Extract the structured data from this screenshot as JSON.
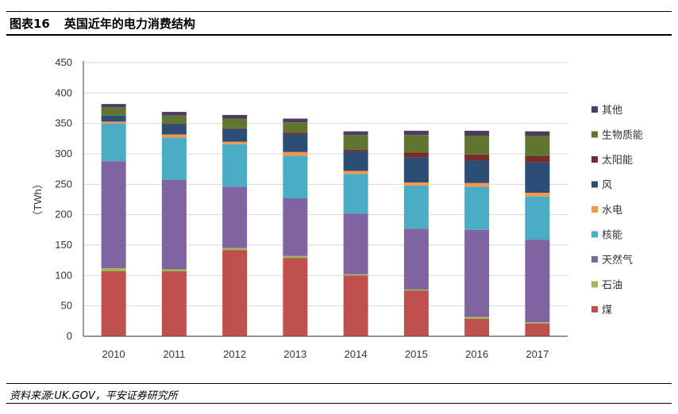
{
  "header": {
    "figure_no": "图表16",
    "title": "英国近年的电力消费结构"
  },
  "footer": {
    "source": "资料来源:UK.GOV，平安证券研究所"
  },
  "chart_data": {
    "type": "stacked-bar",
    "title": "英国近年的电力消费结构",
    "ylabel": "（TWh）",
    "xlabel": "",
    "ylim": [
      0,
      450
    ],
    "yticks": [
      0,
      50,
      100,
      150,
      200,
      250,
      300,
      350,
      400,
      450
    ],
    "grid": true,
    "legend_position": "right",
    "categories": [
      "2010",
      "2011",
      "2012",
      "2013",
      "2014",
      "2015",
      "2016",
      "2017"
    ],
    "series": [
      {
        "name": "煤",
        "color": "#C0504D",
        "values": [
          107,
          107,
          142,
          129,
          100,
          75,
          29,
          21
        ]
      },
      {
        "name": "石油",
        "color": "#9BBB59",
        "values": [
          5,
          3,
          3,
          3,
          2,
          2,
          3,
          2
        ]
      },
      {
        "name": "天然气",
        "color": "#8064A2",
        "values": [
          176,
          147,
          101,
          95,
          100,
          100,
          143,
          136
        ]
      },
      {
        "name": "核能",
        "color": "#4BACC6",
        "values": [
          62,
          70,
          70,
          70,
          65,
          71,
          71,
          71
        ]
      },
      {
        "name": "水电",
        "color": "#F79646",
        "values": [
          3,
          5,
          4,
          6,
          5,
          5,
          6,
          6
        ]
      },
      {
        "name": "风",
        "color": "#2C4D75",
        "values": [
          10,
          17,
          21,
          29,
          32,
          41,
          37,
          50
        ]
      },
      {
        "name": "太阳能",
        "color": "#772C2A",
        "values": [
          0,
          1,
          1,
          3,
          3,
          8,
          10,
          11
        ]
      },
      {
        "name": "生物质能",
        "color": "#5F7530",
        "values": [
          14,
          13,
          16,
          17,
          24,
          29,
          31,
          33
        ]
      },
      {
        "name": "其他",
        "color": "#4D3B62",
        "values": [
          5,
          6,
          6,
          6,
          6,
          7,
          8,
          7
        ]
      }
    ]
  }
}
